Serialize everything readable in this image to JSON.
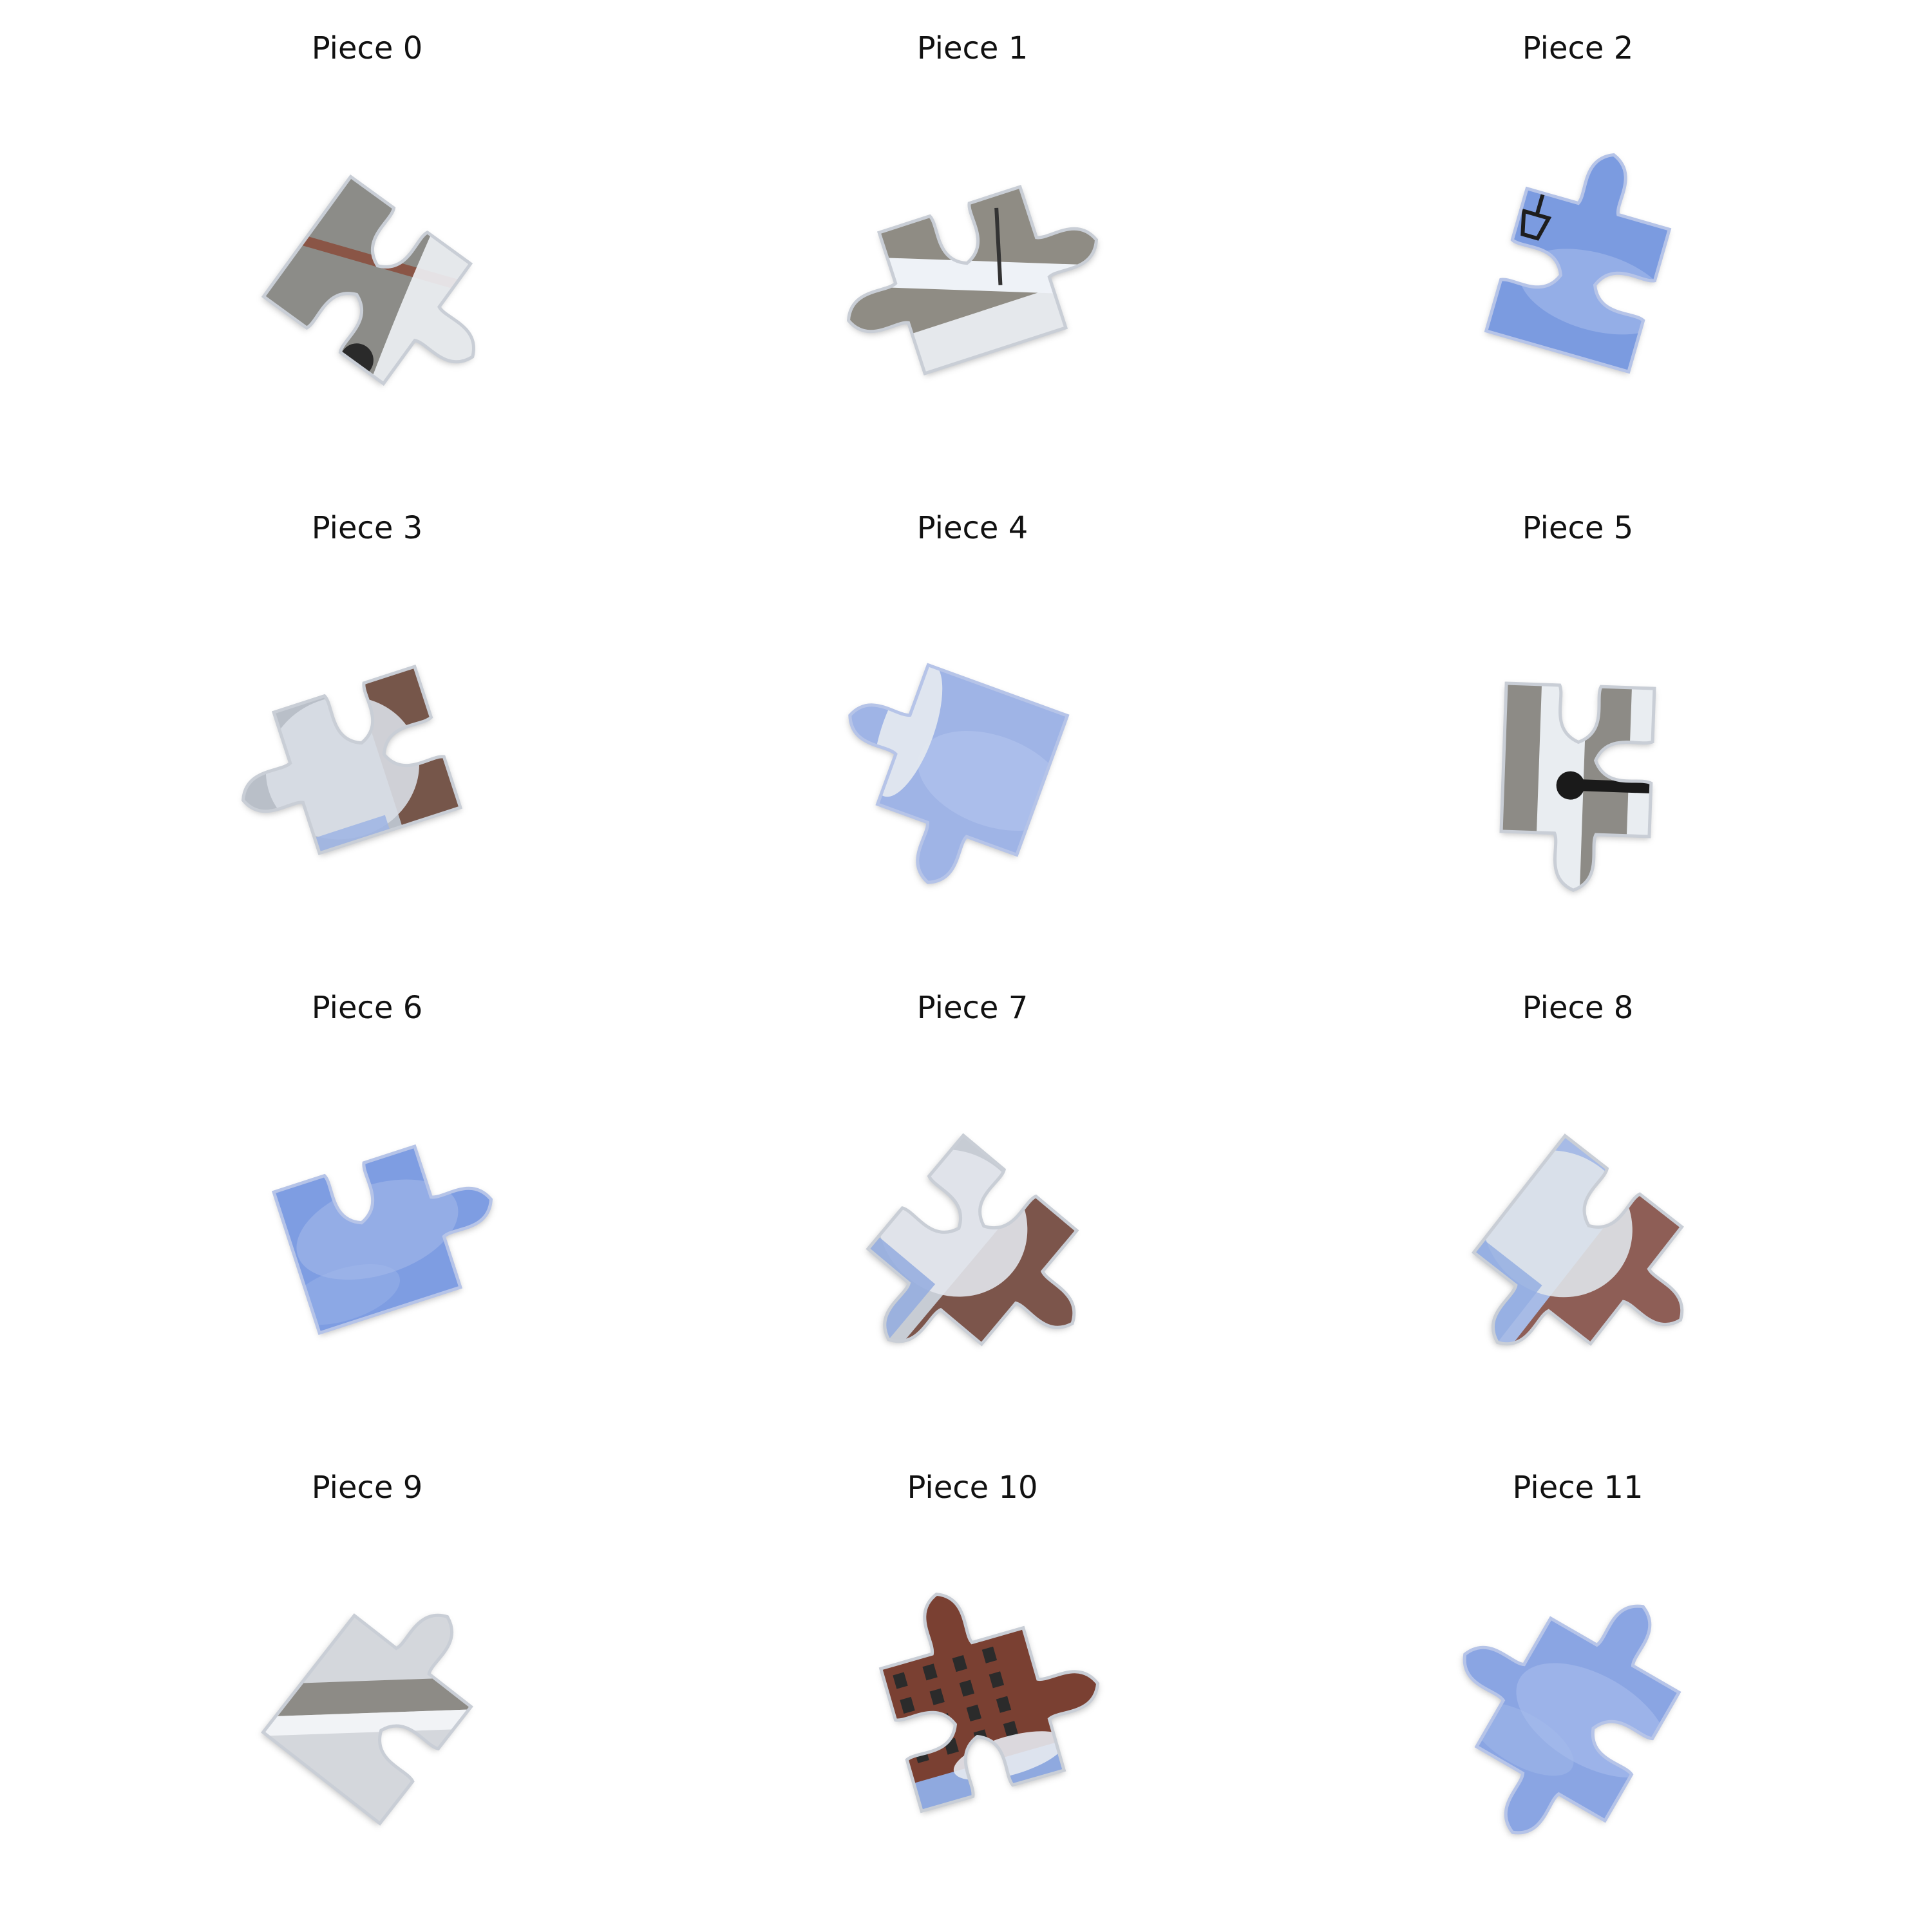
{
  "pieces": [
    {
      "id": 0,
      "label": "Piece 0",
      "rotation": 36,
      "tabs": {
        "top": "blank",
        "right": "tab",
        "bottom": "blank",
        "left": "flat"
      },
      "colors": {
        "base": "#8c8c88",
        "stripe": "#8a5546",
        "snow": "#eef2f6",
        "edge": "#c9ced6"
      },
      "content": "street-wall"
    },
    {
      "id": 1,
      "label": "Piece 1",
      "rotation": -18,
      "tabs": {
        "top": "blank",
        "right": "tab",
        "bottom": "flat",
        "left": "tab"
      },
      "colors": {
        "base": "#8f8c84",
        "stripe": "#a49d92",
        "snow": "#eef2f7",
        "edge": "#c9ced6"
      },
      "content": "sidewalk"
    },
    {
      "id": 2,
      "label": "Piece 2",
      "rotation": 16,
      "tabs": {
        "top": "tab",
        "right": "blank",
        "bottom": "flat",
        "left": "blank"
      },
      "colors": {
        "base": "#7b9be0",
        "highlight": "#9fb6ea",
        "lamp": "#1e1e1e",
        "edge": "#b6c4e8"
      },
      "content": "sky-lamp"
    },
    {
      "id": 3,
      "label": "Piece 3",
      "rotation": -18,
      "tabs": {
        "top": "blank",
        "right": "blank",
        "bottom": "flat",
        "left": "tab"
      },
      "colors": {
        "base": "#b9bfc8",
        "tree": "#d9dee6",
        "brick": "#6a4334",
        "sky": "#9db4e4",
        "edge": "#c9ced6"
      },
      "content": "tree-building"
    },
    {
      "id": 4,
      "label": "Piece 4",
      "rotation": 20,
      "tabs": {
        "top": "flat",
        "right": "flat",
        "bottom": "tab",
        "left": "tab"
      },
      "colors": {
        "base": "#9fb4e6",
        "highlight": "#b4c4ee",
        "tree": "#e6eaf0",
        "edge": "#b6c4e8"
      },
      "content": "sky-tree"
    },
    {
      "id": 5,
      "label": "Piece 5",
      "rotation": 2,
      "tabs": {
        "top": "blank",
        "right": "blank",
        "bottom": "tab",
        "left": "flat"
      },
      "colors": {
        "base": "#8d8b86",
        "snow": "#eef2f7",
        "pole": "#1a1a1a",
        "edge": "#c9ced6"
      },
      "content": "sidewalk-pole"
    },
    {
      "id": 6,
      "label": "Piece 6",
      "rotation": -18,
      "tabs": {
        "top": "blank",
        "right": "tab",
        "bottom": "flat",
        "left": "flat"
      },
      "colors": {
        "base": "#7e9de2",
        "highlight": "#a3b8ea",
        "edge": "#b6c4e8"
      },
      "content": "sky"
    },
    {
      "id": 7,
      "label": "Piece 7",
      "rotation": 40,
      "tabs": {
        "top": "blank",
        "right": "tab",
        "bottom": "tab",
        "left": "blank"
      },
      "colors": {
        "base": "#c7ccd4",
        "tree": "#e2e6ec",
        "brick": "#6e3f33",
        "sky": "#93acdf",
        "edge": "#c9ced6"
      },
      "content": "tree-building"
    },
    {
      "id": 8,
      "label": "Piece 8",
      "rotation": 38,
      "tabs": {
        "top": "blank",
        "right": "tab",
        "bottom": "tab",
        "left": "flat"
      },
      "colors": {
        "base": "#a7bbe6",
        "tree": "#dfe4ea",
        "brick": "#8a4e3c",
        "sky": "#94aee2",
        "edge": "#c9ced6"
      },
      "content": "tree-building"
    },
    {
      "id": 9,
      "label": "Piece 9",
      "rotation": 38,
      "tabs": {
        "top": "tab",
        "right": "blank",
        "bottom": "flat",
        "left": "flat"
      },
      "colors": {
        "base": "#d4d7dc",
        "stripe": "#8d8b86",
        "snow": "#f1f3f6",
        "edge": "#c9ced6"
      },
      "content": "snow-road"
    },
    {
      "id": 10,
      "label": "Piece 10",
      "rotation": -16,
      "tabs": {
        "top": "tab",
        "right": "tab",
        "bottom": "blank",
        "left": "blank"
      },
      "colors": {
        "base": "#7a4032",
        "window": "#2b2b2b",
        "sky": "#8fa9df",
        "tree": "#e5e9ef",
        "edge": "#c9ced6"
      },
      "content": "brick-building"
    },
    {
      "id": 11,
      "label": "Piece 11",
      "rotation": 30,
      "tabs": {
        "top": "tab",
        "right": "blank",
        "bottom": "tab",
        "left": "tab"
      },
      "colors": {
        "base": "#8aa5e3",
        "highlight": "#a8bdec",
        "edge": "#b6c4e8"
      },
      "content": "sky"
    }
  ]
}
